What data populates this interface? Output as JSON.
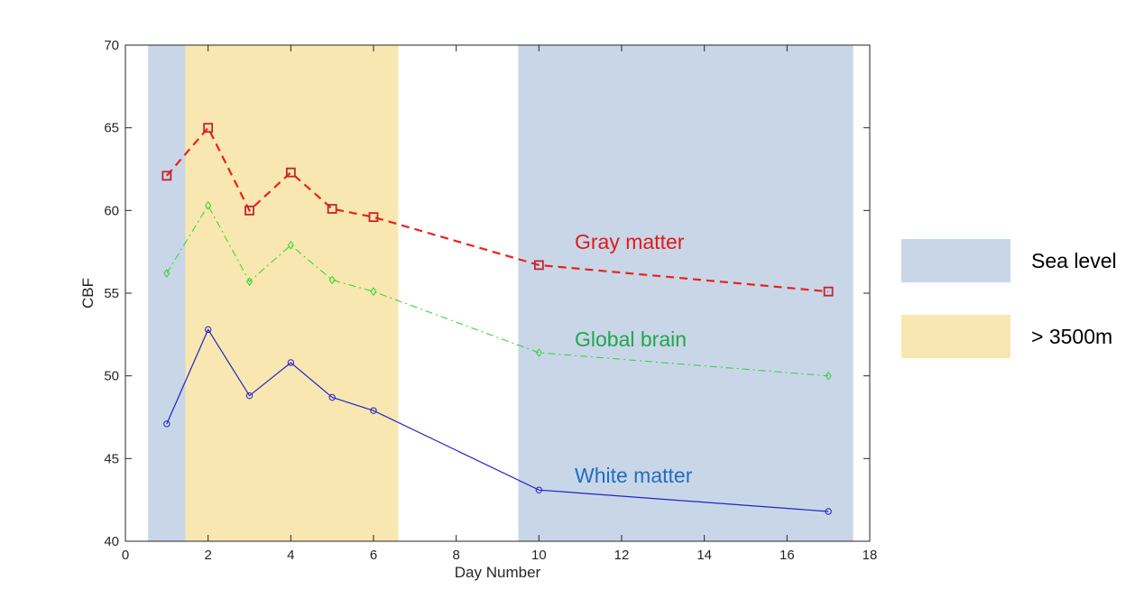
{
  "chart_data": {
    "type": "line",
    "xlabel": "Day Number",
    "ylabel": "CBF",
    "xlim": [
      0,
      18
    ],
    "ylim": [
      40,
      70
    ],
    "xticks": [
      0,
      2,
      4,
      6,
      8,
      10,
      12,
      14,
      16,
      18
    ],
    "yticks": [
      40,
      45,
      50,
      55,
      60,
      65,
      70
    ],
    "shaded_regions": [
      {
        "name": "Sea level",
        "x_start": 0.55,
        "x_end": 1.45,
        "color": "#c9d6e8"
      },
      {
        "name": "> 3500m",
        "x_start": 1.45,
        "x_end": 6.6,
        "color": "#f8e7b1"
      },
      {
        "name": "Sea level",
        "x_start": 9.5,
        "x_end": 17.6,
        "color": "#c9d6e8"
      }
    ],
    "series": [
      {
        "name": "Gray matter",
        "x": [
          1,
          2,
          3,
          4,
          5,
          6,
          10,
          17
        ],
        "y": [
          62.1,
          65.0,
          60.0,
          62.3,
          60.1,
          59.6,
          56.7,
          55.1
        ],
        "color": "#e8231c",
        "line_style": "dashed",
        "marker": "square"
      },
      {
        "name": "Global brain",
        "x": [
          1,
          2,
          3,
          4,
          5,
          6,
          10,
          17
        ],
        "y": [
          56.2,
          60.3,
          55.7,
          57.9,
          55.8,
          55.1,
          51.4,
          50.0
        ],
        "color": "#2fd42f",
        "line_style": "dash-dot",
        "marker": "diamond"
      },
      {
        "name": "White matter",
        "x": [
          1,
          2,
          3,
          4,
          5,
          6,
          10,
          17
        ],
        "y": [
          47.1,
          52.8,
          48.8,
          50.8,
          48.7,
          47.9,
          43.1,
          41.8
        ],
        "color": "#2323c8",
        "line_style": "solid",
        "marker": "circle"
      }
    ],
    "annotations": [
      {
        "text": "Gray matter",
        "color": "#e11b1b"
      },
      {
        "text": "Global brain",
        "color": "#1fa84a"
      },
      {
        "text": "White matter",
        "color": "#1f6fc0"
      }
    ],
    "legend": {
      "placement": "right",
      "entries": [
        {
          "label": "Sea level",
          "color": "#c9d6e8"
        },
        {
          "label": "> 3500m",
          "color": "#f8e7b1"
        }
      ]
    }
  }
}
